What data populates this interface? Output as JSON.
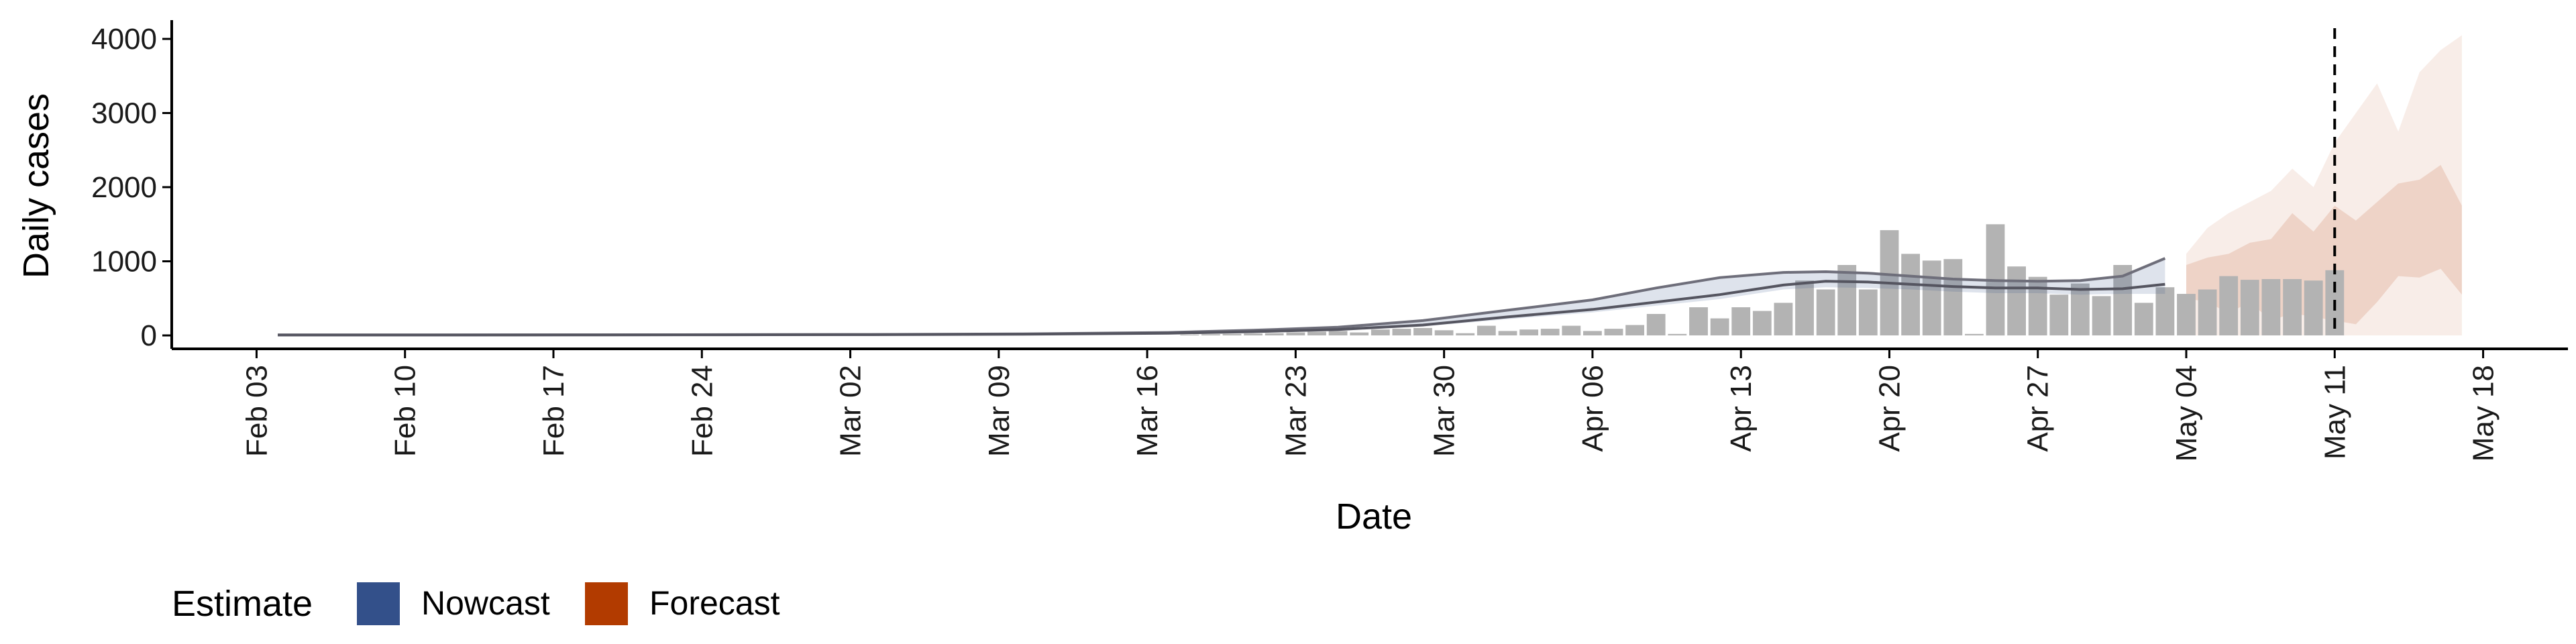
{
  "chart_data": {
    "type": "bar",
    "xlabel": "Date",
    "ylabel": "Daily cases",
    "ylim": [
      0,
      4200
    ],
    "yticks": [
      0,
      1000,
      2000,
      3000,
      4000
    ],
    "ytick_labels": [
      "0",
      "1000",
      "2000",
      "3000",
      "4000"
    ],
    "xlim": [
      "2020-01-30",
      "2020-05-22"
    ],
    "xticks": [
      "2020-02-03",
      "2020-02-10",
      "2020-02-17",
      "2020-02-24",
      "2020-03-02",
      "2020-03-09",
      "2020-03-16",
      "2020-03-23",
      "2020-03-30",
      "2020-04-06",
      "2020-04-13",
      "2020-04-20",
      "2020-04-27",
      "2020-05-04",
      "2020-05-11",
      "2020-05-18"
    ],
    "xtick_labels": [
      "Feb 03",
      "Feb 10",
      "Feb 17",
      "Feb 24",
      "Mar 02",
      "Mar 09",
      "Mar 16",
      "Mar 23",
      "Mar 30",
      "Apr 06",
      "Apr 13",
      "Apr 20",
      "Apr 27",
      "May 04",
      "May 11",
      "May 18"
    ],
    "forecast_date": "2020-05-11",
    "reported_cases": {
      "dates": [
        "2020-03-18",
        "2020-03-19",
        "2020-03-20",
        "2020-03-21",
        "2020-03-22",
        "2020-03-23",
        "2020-03-24",
        "2020-03-25",
        "2020-03-26",
        "2020-03-27",
        "2020-03-28",
        "2020-03-29",
        "2020-03-30",
        "2020-03-31",
        "2020-04-01",
        "2020-04-02",
        "2020-04-03",
        "2020-04-04",
        "2020-04-05",
        "2020-04-06",
        "2020-04-07",
        "2020-04-08",
        "2020-04-09",
        "2020-04-10",
        "2020-04-11",
        "2020-04-12",
        "2020-04-13",
        "2020-04-14",
        "2020-04-15",
        "2020-04-16",
        "2020-04-17",
        "2020-04-18",
        "2020-04-19",
        "2020-04-20",
        "2020-04-21",
        "2020-04-22",
        "2020-04-23",
        "2020-04-24",
        "2020-04-25",
        "2020-04-26",
        "2020-04-27",
        "2020-04-28",
        "2020-04-29",
        "2020-04-30",
        "2020-05-01",
        "2020-05-02",
        "2020-05-03",
        "2020-05-04",
        "2020-05-05",
        "2020-05-06",
        "2020-05-07",
        "2020-05-08",
        "2020-05-09",
        "2020-05-10",
        "2020-05-11"
      ],
      "values": [
        10,
        15,
        20,
        25,
        30,
        40,
        50,
        60,
        40,
        80,
        90,
        100,
        70,
        30,
        130,
        60,
        80,
        90,
        130,
        60,
        90,
        140,
        290,
        20,
        380,
        230,
        380,
        330,
        440,
        740,
        620,
        950,
        620,
        1420,
        1100,
        1010,
        1030,
        20,
        1500,
        930,
        790,
        550,
        700,
        530,
        950,
        440,
        650,
        560,
        620,
        800,
        750,
        760,
        760,
        740,
        880
      ]
    },
    "series": [
      {
        "name": "Nowcast",
        "color": "#33508a",
        "dates": [
          "2020-02-04",
          "2020-02-11",
          "2020-02-18",
          "2020-02-25",
          "2020-03-03",
          "2020-03-10",
          "2020-03-17",
          "2020-03-21",
          "2020-03-25",
          "2020-03-29",
          "2020-04-02",
          "2020-04-06",
          "2020-04-09",
          "2020-04-12",
          "2020-04-15",
          "2020-04-17",
          "2020-04-19",
          "2020-04-21",
          "2020-04-23",
          "2020-04-25",
          "2020-04-27",
          "2020-04-29",
          "2020-05-01",
          "2020-05-03"
        ],
        "median": [
          5,
          5,
          6,
          8,
          10,
          15,
          30,
          50,
          80,
          140,
          250,
          350,
          450,
          550,
          680,
          730,
          720,
          690,
          660,
          640,
          640,
          620,
          630,
          690
        ],
        "lower": [
          4,
          4,
          5,
          6,
          8,
          12,
          25,
          42,
          65,
          120,
          220,
          310,
          400,
          490,
          620,
          650,
          640,
          620,
          590,
          570,
          570,
          550,
          560,
          560
        ],
        "upper": [
          6,
          6,
          8,
          10,
          13,
          20,
          40,
          70,
          110,
          200,
          340,
          480,
          640,
          780,
          850,
          860,
          840,
          800,
          760,
          740,
          730,
          740,
          800,
          1040
        ]
      },
      {
        "name": "Forecast",
        "color": "#b23b00",
        "dates": [
          "2020-05-04",
          "2020-05-05",
          "2020-05-06",
          "2020-05-07",
          "2020-05-08",
          "2020-05-09",
          "2020-05-10",
          "2020-05-11",
          "2020-05-12",
          "2020-05-13",
          "2020-05-14",
          "2020-05-15",
          "2020-05-16",
          "2020-05-17"
        ],
        "lower": [
          0,
          0,
          0,
          0,
          0,
          0,
          0,
          0,
          0,
          0,
          0,
          0,
          0,
          0
        ],
        "mid_lower": [
          500,
          450,
          300,
          450,
          200,
          300,
          250,
          200,
          150,
          450,
          800,
          780,
          900,
          550
        ],
        "mid_upper": [
          950,
          1050,
          1100,
          1250,
          1300,
          1650,
          1400,
          1750,
          1550,
          1800,
          2050,
          2100,
          2300,
          1750
        ],
        "upper": [
          1100,
          1450,
          1650,
          1800,
          1950,
          2250,
          2000,
          2600,
          3000,
          3400,
          2750,
          3550,
          3850,
          4050
        ]
      }
    ],
    "legend": {
      "title": "Estimate",
      "position": "bottom-left",
      "entries": [
        {
          "label": "Nowcast",
          "color": "#33508a"
        },
        {
          "label": "Forecast",
          "color": "#b23b00"
        }
      ]
    },
    "grid": false
  }
}
